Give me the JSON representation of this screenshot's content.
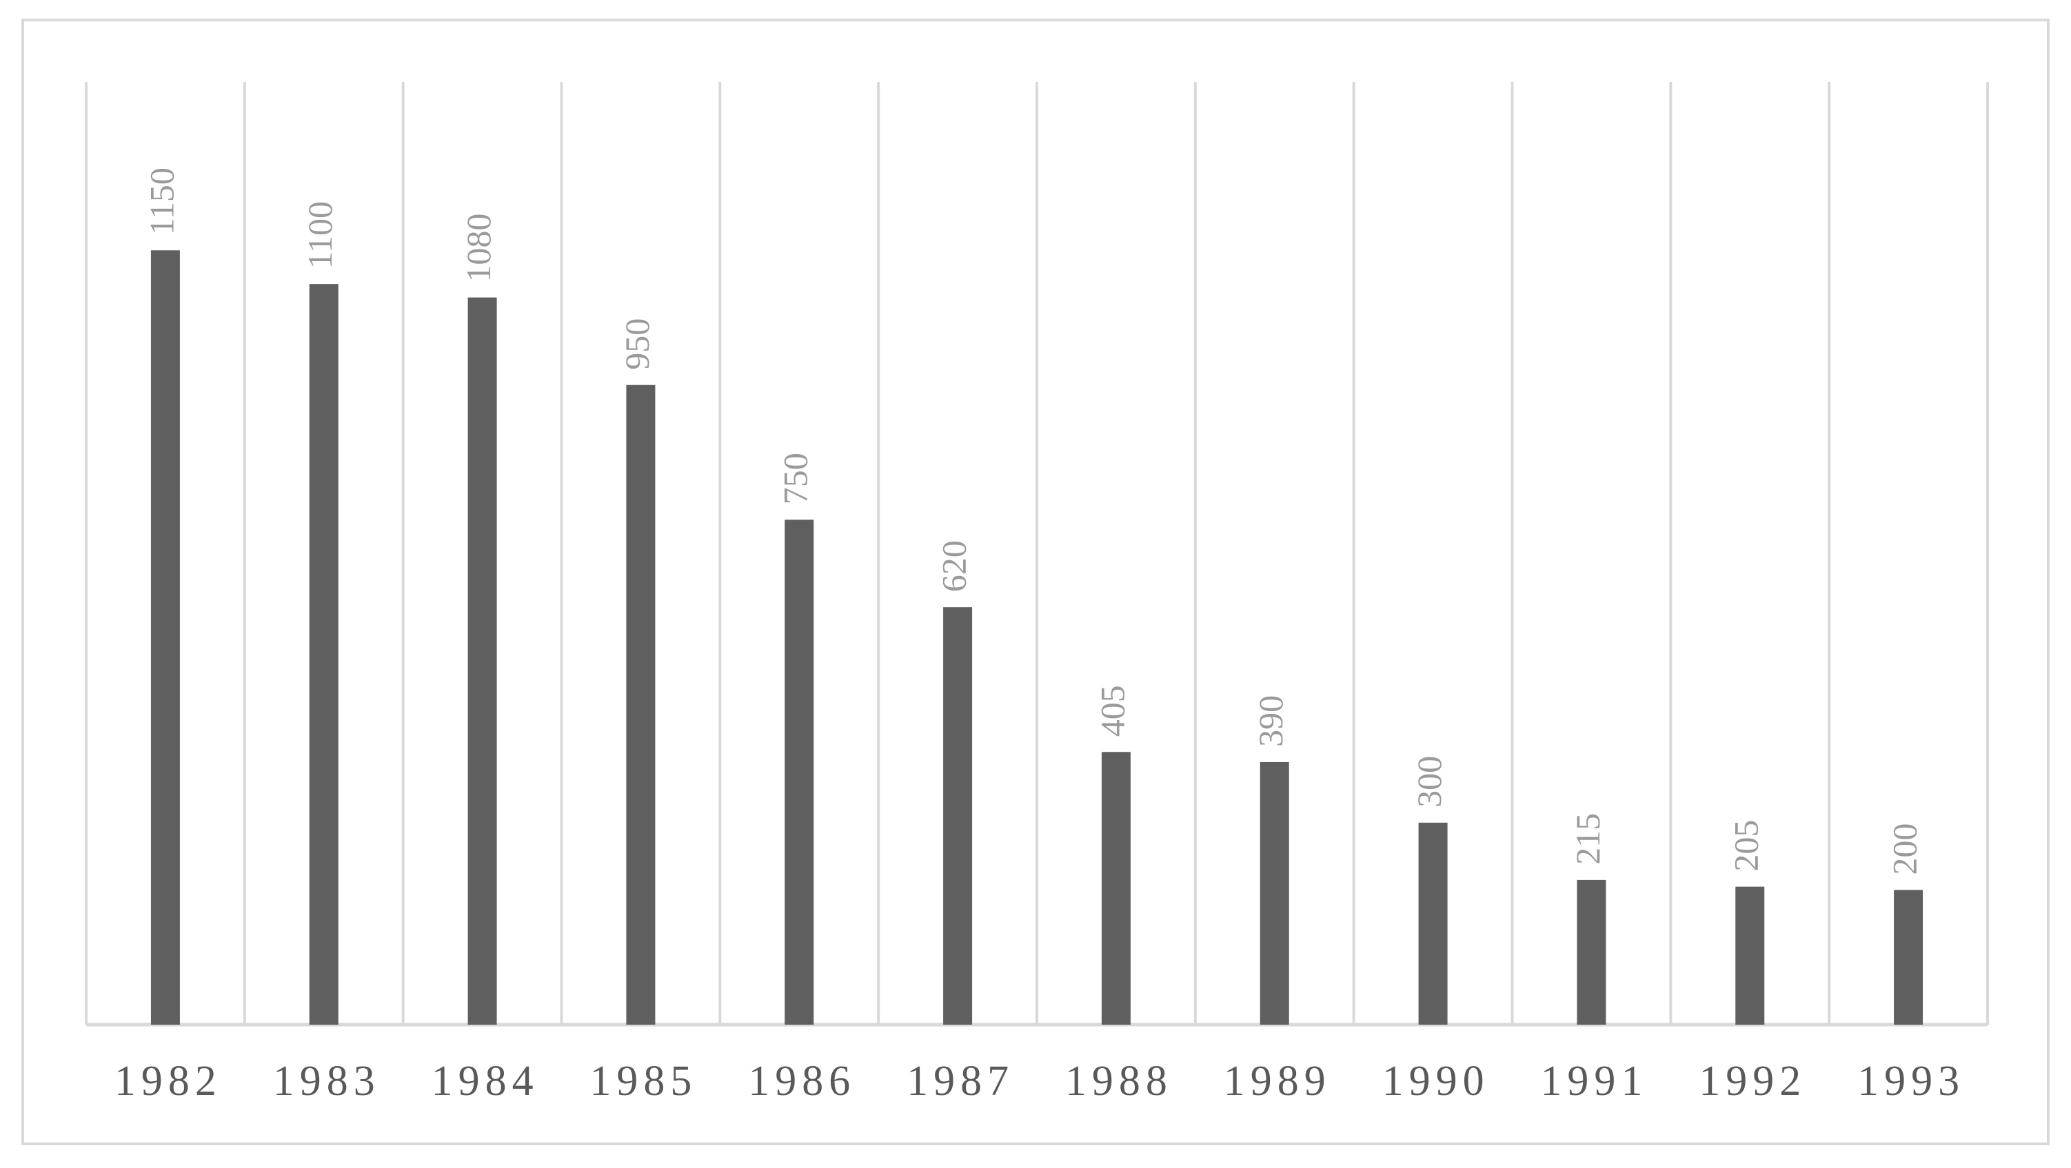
{
  "chart_data": {
    "type": "bar",
    "categories": [
      "1982",
      "1983",
      "1984",
      "1985",
      "1986",
      "1987",
      "1988",
      "1989",
      "1990",
      "1991",
      "1992",
      "1993"
    ],
    "values": [
      1150,
      1100,
      1080,
      950,
      750,
      620,
      405,
      390,
      300,
      215,
      205,
      200
    ],
    "color": "#5f5f5f",
    "ylim": [
      0,
      1400
    ]
  }
}
